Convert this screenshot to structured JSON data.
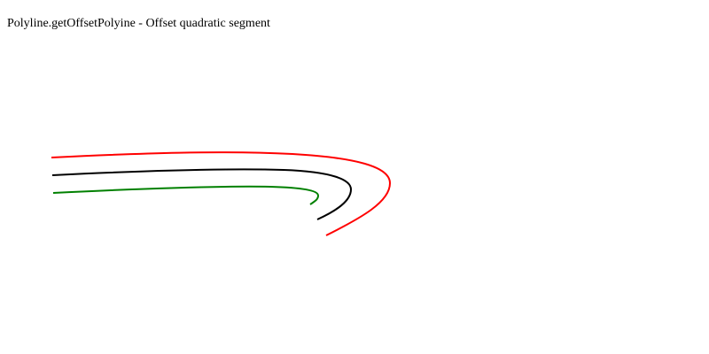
{
  "header": {
    "title": "Polyline.getOffsetPolyine - Offset quadratic segment"
  },
  "curves": {
    "source": {
      "color": "#000000"
    },
    "outer_offset": {
      "color": "#ff0000"
    },
    "inner_offset": {
      "color": "#008000"
    }
  }
}
